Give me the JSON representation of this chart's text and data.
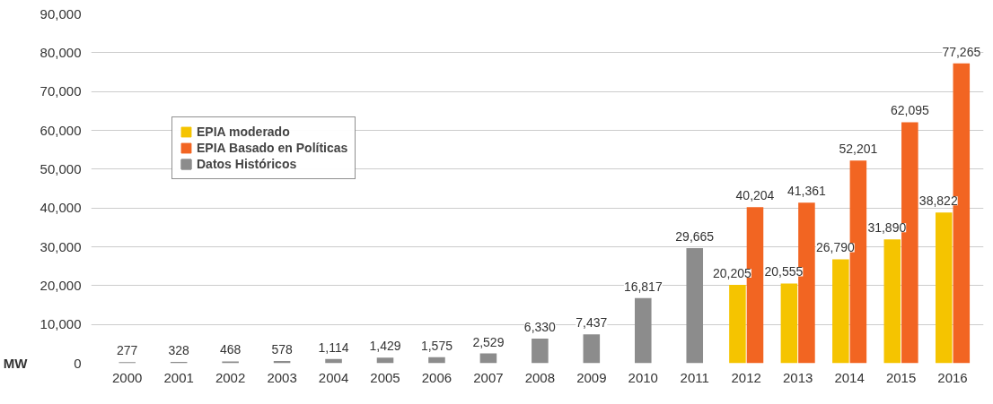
{
  "chart_data": {
    "type": "bar",
    "ylabel": "MW",
    "categories": [
      "2000",
      "2001",
      "2002",
      "2003",
      "2004",
      "2005",
      "2006",
      "2007",
      "2008",
      "2009",
      "2010",
      "2011",
      "2012",
      "2013",
      "2014",
      "2015",
      "2016"
    ],
    "series": [
      {
        "name": "EPIA moderado",
        "color": "#f5c400",
        "values": [
          null,
          null,
          null,
          null,
          null,
          null,
          null,
          null,
          null,
          null,
          null,
          null,
          20205,
          20555,
          26790,
          31890,
          38822
        ],
        "value_labels": [
          null,
          null,
          null,
          null,
          null,
          null,
          null,
          null,
          null,
          null,
          null,
          null,
          "20,205",
          "20,555",
          "26,790",
          "31,890",
          "38,822"
        ]
      },
      {
        "name": "EPIA Basado en Políticas",
        "color": "#f26522",
        "values": [
          null,
          null,
          null,
          null,
          null,
          null,
          null,
          null,
          null,
          null,
          null,
          null,
          40204,
          41361,
          52201,
          62095,
          77265
        ],
        "value_labels": [
          null,
          null,
          null,
          null,
          null,
          null,
          null,
          null,
          null,
          null,
          null,
          null,
          "40,204",
          "41,361",
          "52,201",
          "62,095",
          "77,265"
        ]
      },
      {
        "name": "Datos Históricos",
        "color": "#8c8c8c",
        "values": [
          277,
          328,
          468,
          578,
          1114,
          1429,
          1575,
          2529,
          6330,
          7437,
          16817,
          29665,
          null,
          null,
          null,
          null,
          null
        ],
        "value_labels": [
          "277",
          "328",
          "468",
          "578",
          "1,114",
          "1,429",
          "1,575",
          "2,529",
          "6,330",
          "7,437",
          "16,817",
          "29,665",
          null,
          null,
          null,
          null,
          null
        ]
      }
    ],
    "ylim": [
      0,
      90000
    ],
    "yticks": [
      0,
      {
        "value": 10000,
        "label": "10,000"
      },
      {
        "value": 20000,
        "label": "20,000"
      },
      {
        "value": 30000,
        "label": "30,000"
      },
      {
        "value": 40000,
        "label": "40,000"
      },
      {
        "value": 50000,
        "label": "50,000"
      },
      {
        "value": 60000,
        "label": "60,000"
      },
      {
        "value": 70000,
        "label": "70,000"
      },
      {
        "value": 80000,
        "label": "80,000"
      },
      {
        "value": 90000,
        "label": "90,000"
      }
    ],
    "grid": "y",
    "legend": "top left"
  }
}
